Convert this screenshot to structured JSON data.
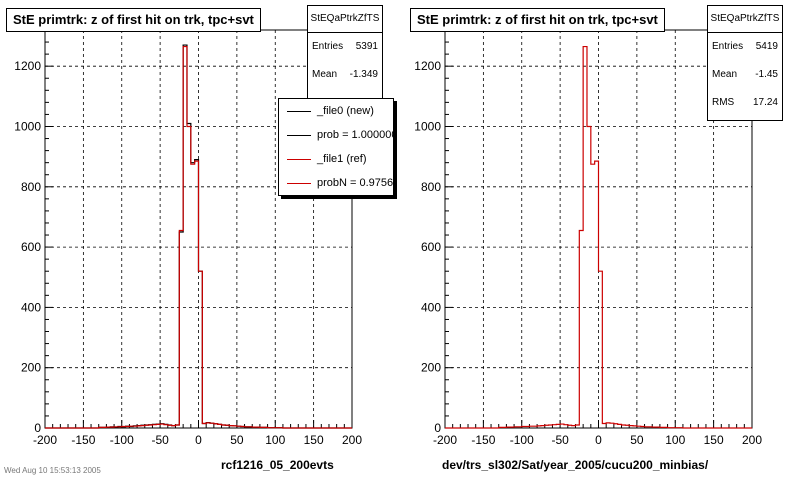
{
  "chart_data": [
    {
      "type": "histogram",
      "title": "StE primtrk: z of first hit on trk, tpc+svt",
      "xlabel": "rcf1216_05_200evts",
      "xlim": [
        -200,
        200
      ],
      "ylim": [
        0,
        1320
      ],
      "xticks": [
        -200,
        -150,
        -100,
        -50,
        0,
        50,
        100,
        150,
        200
      ],
      "yticks": [
        0,
        200,
        400,
        600,
        800,
        1000,
        1200
      ],
      "grid": true,
      "stats": {
        "name": "StEQaPtrkZfTS",
        "rows": [
          {
            "label": "Entries",
            "value": "5391"
          },
          {
            "label": "Mean",
            "value": "-1.349"
          }
        ]
      },
      "legend": {
        "placement": "top-right",
        "entries": [
          {
            "label": "_file0 (new)",
            "color": "#000000"
          },
          {
            "label": "prob = 1.000000",
            "color": "#000000"
          },
          {
            "label": "_file1 (ref)",
            "color": "#cc0000"
          },
          {
            "label": "probN = 0.975670",
            "color": "#cc0000"
          }
        ]
      },
      "bin_edges": [
        -200,
        -195,
        -190,
        -185,
        -180,
        -175,
        -170,
        -165,
        -160,
        -155,
        -150,
        -145,
        -140,
        -135,
        -130,
        -125,
        -120,
        -115,
        -110,
        -105,
        -100,
        -95,
        -90,
        -85,
        -80,
        -75,
        -70,
        -65,
        -60,
        -55,
        -50,
        -45,
        -40,
        -35,
        -30,
        -25,
        -20,
        -15,
        -10,
        -5,
        0,
        5,
        10,
        15,
        20,
        25,
        30,
        35,
        40,
        45,
        50,
        55,
        60,
        65,
        70,
        75,
        80,
        85,
        90,
        95,
        100,
        105,
        110,
        115,
        120,
        125,
        130,
        135,
        140,
        145,
        150,
        155,
        160,
        165,
        170,
        175,
        180,
        185,
        190,
        195,
        200
      ],
      "series": [
        {
          "name": "_file0 (new)",
          "color": "#000000",
          "values": [
            0,
            0,
            0,
            0,
            0,
            0,
            0,
            0,
            0,
            0,
            0,
            0,
            0,
            0,
            2,
            2,
            3,
            4,
            3,
            5,
            4,
            6,
            5,
            7,
            8,
            9,
            10,
            11,
            12,
            13,
            14,
            12,
            10,
            8,
            10,
            650,
            1270,
            1010,
            880,
            890,
            520,
            15,
            18,
            16,
            14,
            12,
            10,
            9,
            8,
            7,
            6,
            5,
            4,
            4,
            3,
            3,
            2,
            2,
            1,
            1,
            1,
            1,
            0,
            0,
            0,
            0,
            0,
            0,
            0,
            0,
            0,
            0,
            0,
            0,
            0,
            0,
            0,
            0,
            0,
            0
          ]
        },
        {
          "name": "_file1 (ref)",
          "color": "#cc0000",
          "values": [
            0,
            0,
            0,
            0,
            0,
            0,
            0,
            0,
            0,
            0,
            0,
            0,
            0,
            0,
            2,
            2,
            3,
            3,
            4,
            4,
            5,
            5,
            6,
            6,
            7,
            8,
            9,
            10,
            11,
            12,
            13,
            11,
            9,
            8,
            10,
            655,
            1265,
            1000,
            875,
            885,
            520,
            15,
            17,
            16,
            14,
            12,
            10,
            9,
            8,
            7,
            6,
            5,
            4,
            4,
            3,
            3,
            2,
            2,
            1,
            1,
            1,
            1,
            0,
            0,
            0,
            0,
            0,
            0,
            0,
            0,
            0,
            0,
            0,
            0,
            0,
            0,
            0,
            0,
            0,
            0
          ]
        }
      ]
    },
    {
      "type": "histogram",
      "title": "StE primtrk: z of first hit on trk, tpc+svt",
      "xlabel": "dev/trs_sl302/Sat/year_2005/cucu200_minbias/",
      "xlim": [
        -200,
        200
      ],
      "ylim": [
        0,
        1320
      ],
      "xticks": [
        -200,
        -150,
        -100,
        -50,
        0,
        50,
        100,
        150,
        200
      ],
      "yticks": [
        0,
        200,
        400,
        600,
        800,
        1000,
        1200
      ],
      "grid": true,
      "stats": {
        "name": "StEQaPtrkZfTS",
        "rows": [
          {
            "label": "Entries",
            "value": "5419"
          },
          {
            "label": "Mean",
            "value": "-1.45"
          },
          {
            "label": "RMS",
            "value": "17.24"
          }
        ]
      },
      "bin_edges": [
        -200,
        -195,
        -190,
        -185,
        -180,
        -175,
        -170,
        -165,
        -160,
        -155,
        -150,
        -145,
        -140,
        -135,
        -130,
        -125,
        -120,
        -115,
        -110,
        -105,
        -100,
        -95,
        -90,
        -85,
        -80,
        -75,
        -70,
        -65,
        -60,
        -55,
        -50,
        -45,
        -40,
        -35,
        -30,
        -25,
        -20,
        -15,
        -10,
        -5,
        0,
        5,
        10,
        15,
        20,
        25,
        30,
        35,
        40,
        45,
        50,
        55,
        60,
        65,
        70,
        75,
        80,
        85,
        90,
        95,
        100,
        105,
        110,
        115,
        120,
        125,
        130,
        135,
        140,
        145,
        150,
        155,
        160,
        165,
        170,
        175,
        180,
        185,
        190,
        195,
        200
      ],
      "series": [
        {
          "name": "_file1 (ref)",
          "color": "#cc0000",
          "values": [
            0,
            0,
            0,
            0,
            0,
            0,
            0,
            0,
            0,
            0,
            0,
            0,
            0,
            0,
            2,
            2,
            3,
            3,
            4,
            4,
            5,
            5,
            6,
            6,
            7,
            8,
            9,
            10,
            11,
            12,
            13,
            11,
            9,
            8,
            10,
            655,
            1265,
            1000,
            875,
            885,
            520,
            15,
            17,
            16,
            14,
            12,
            10,
            9,
            8,
            7,
            6,
            5,
            4,
            4,
            3,
            3,
            2,
            2,
            1,
            1,
            1,
            1,
            0,
            0,
            0,
            0,
            0,
            0,
            0,
            0,
            0,
            0,
            0,
            0,
            0,
            0,
            0,
            0,
            0,
            0
          ]
        }
      ]
    }
  ],
  "footer": "Wed Aug 10 15:53:13 2005"
}
